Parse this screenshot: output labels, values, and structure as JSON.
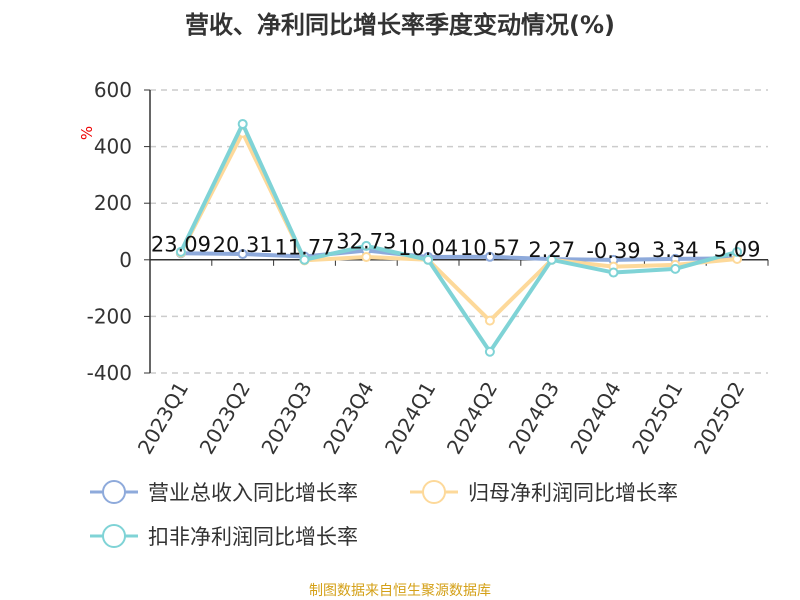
{
  "chart_data": {
    "type": "line",
    "title": "营收、净利同比增长率季度变动情况(%)",
    "ylabel": "%",
    "ylim": [
      -400,
      600
    ],
    "yticks": [
      600,
      400,
      200,
      0,
      -200,
      -400
    ],
    "grid": true,
    "legend_position": "bottom",
    "categories": [
      "2023Q1",
      "2023Q2",
      "2023Q3",
      "2023Q4",
      "2024Q1",
      "2024Q2",
      "2024Q3",
      "2024Q4",
      "2025Q1",
      "2025Q2"
    ],
    "series": [
      {
        "name": "营业总收入同比增长率",
        "color": "#8eaadb",
        "values": [
          23.09,
          20.31,
          11.77,
          32.73,
          10.04,
          10.57,
          2.27,
          -0.39,
          3.34,
          5.09
        ],
        "labels": [
          "23.09",
          "20.31",
          "11.77",
          "32.73",
          "10.04",
          "10.57",
          "2.27",
          "-0.39",
          "3.34",
          "5.09"
        ]
      },
      {
        "name": "归母净利润同比增长率",
        "color": "#fdd99a",
        "values": [
          25,
          449,
          -2,
          10,
          0,
          -215,
          0,
          -24,
          -18,
          3
        ]
      },
      {
        "name": "扣非净利润同比增长率",
        "color": "#7fd3d6",
        "values": [
          28,
          480,
          0,
          49,
          0,
          -325,
          0,
          -45,
          -32,
          28
        ]
      }
    ],
    "source": "制图数据来自恒生聚源数据库"
  }
}
